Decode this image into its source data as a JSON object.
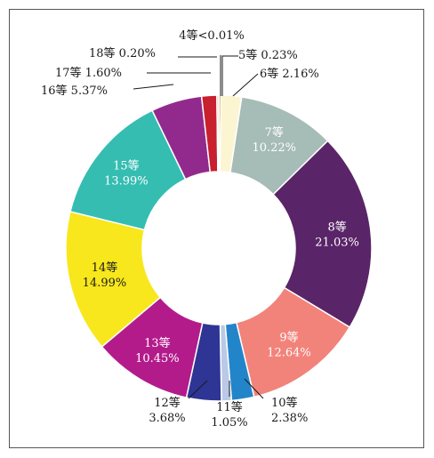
{
  "chart_data": {
    "type": "donut",
    "title": "",
    "slices": [
      {
        "grade": "4等",
        "value": 0.01,
        "label": "4等<0.01%",
        "color": "#1a1a1a"
      },
      {
        "grade": "5等",
        "value": 0.23,
        "label": "5等 0.23%",
        "color": "#c9a227"
      },
      {
        "grade": "6等",
        "value": 2.16,
        "label": "6等 2.16%",
        "color": "#fbf5d2"
      },
      {
        "grade": "7等",
        "value": 10.22,
        "label": "7等\n10.22%",
        "color": "#a6bcb6"
      },
      {
        "grade": "8等",
        "value": 21.03,
        "label": "8等\n21.03%",
        "color": "#5a2468"
      },
      {
        "grade": "9等",
        "value": 12.64,
        "label": "9等\n12.64%",
        "color": "#f2837a"
      },
      {
        "grade": "10等",
        "value": 2.38,
        "label": "10等\n2.38%",
        "color": "#2385c9"
      },
      {
        "grade": "11等",
        "value": 1.05,
        "label": "11等\n1.05%",
        "color": "#b9c9e6"
      },
      {
        "grade": "12等",
        "value": 3.68,
        "label": "12等\n3.68%",
        "color": "#2e3594"
      },
      {
        "grade": "13等",
        "value": 10.45,
        "label": "13等\n10.45%",
        "color": "#b31b8b"
      },
      {
        "grade": "14等",
        "value": 14.99,
        "label": "14等\n14.99%",
        "color": "#f8e71c"
      },
      {
        "grade": "15等",
        "value": 13.99,
        "label": "15等\n13.99%",
        "color": "#35bdb2"
      },
      {
        "grade": "16等",
        "value": 5.37,
        "label": "16等 5.37%",
        "color": "#922a8e"
      },
      {
        "grade": "17等",
        "value": 1.6,
        "label": "17等 1.60%",
        "color": "#c8202e"
      },
      {
        "grade": "18等",
        "value": 0.2,
        "label": "18等 0.20%",
        "color": "#e8b0a0"
      }
    ]
  }
}
